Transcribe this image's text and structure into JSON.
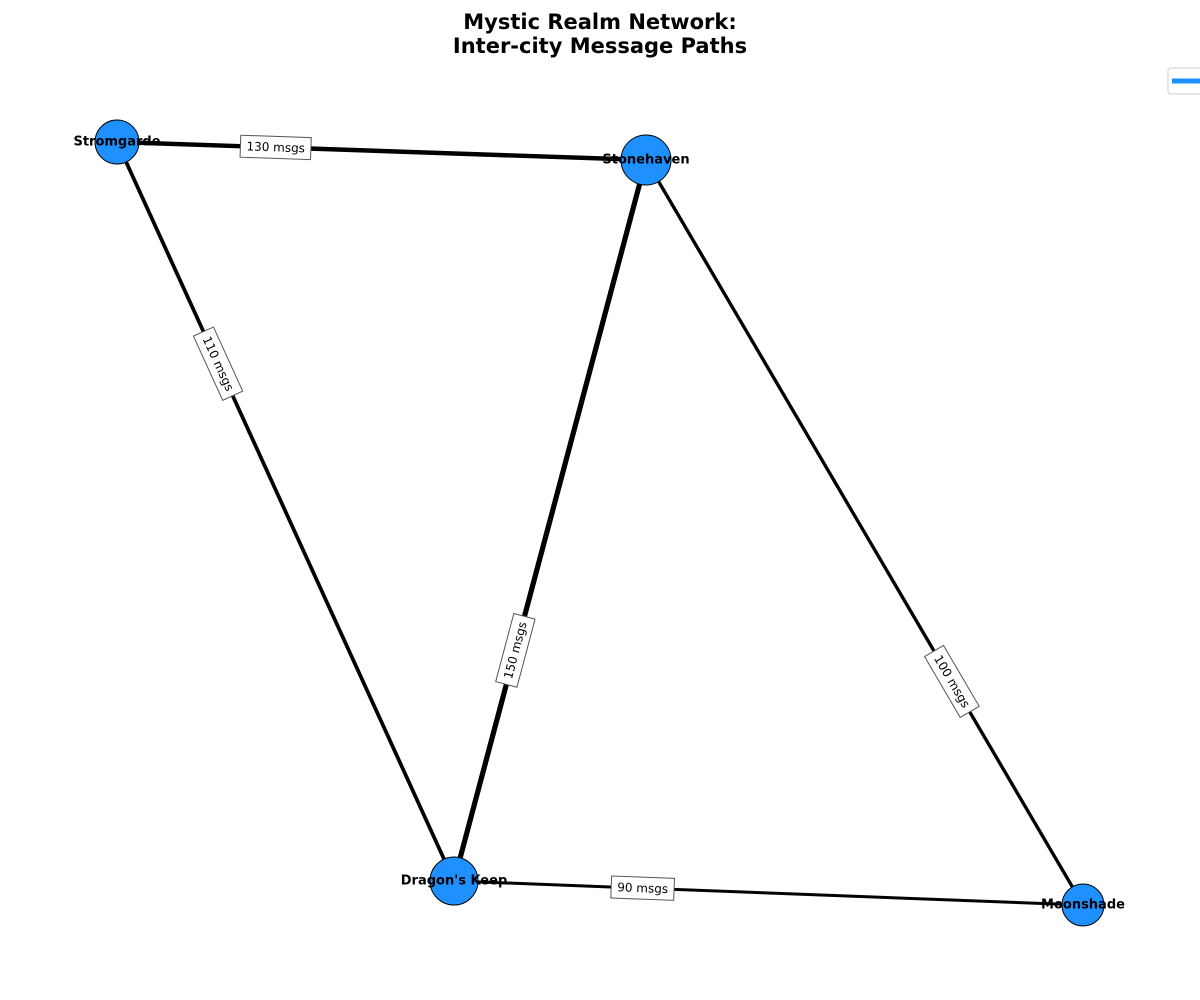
{
  "title": {
    "line1": "Mystic Realm Network:",
    "line2": "Inter-city Message Paths"
  },
  "colors": {
    "node_fill": "#1e90ff",
    "node_stroke": "#000000",
    "edge": "#000000",
    "label_box_stroke": "#555555",
    "legend_line": "#1e90ff"
  },
  "nodes": [
    {
      "id": "stromgarde",
      "label": "Stromgarde"
    },
    {
      "id": "stonehaven",
      "label": "Stonehaven"
    },
    {
      "id": "dragons_keep",
      "label": "Dragon's Keep"
    },
    {
      "id": "moonshade",
      "label": "Moonshade"
    }
  ],
  "edges": [
    {
      "source": "stromgarde",
      "target": "stonehaven",
      "label": "130 msgs",
      "messages": 130
    },
    {
      "source": "stromgarde",
      "target": "dragons_keep",
      "label": "110 msgs",
      "messages": 110
    },
    {
      "source": "stonehaven",
      "target": "dragons_keep",
      "label": "150 msgs",
      "messages": 150
    },
    {
      "source": "stonehaven",
      "target": "moonshade",
      "label": "100 msgs",
      "messages": 100
    },
    {
      "source": "dragons_keep",
      "target": "moonshade",
      "label": "90 msgs",
      "messages": 90
    }
  ],
  "legend": {
    "visible": true,
    "placement": "top-right (partially cut off)"
  }
}
